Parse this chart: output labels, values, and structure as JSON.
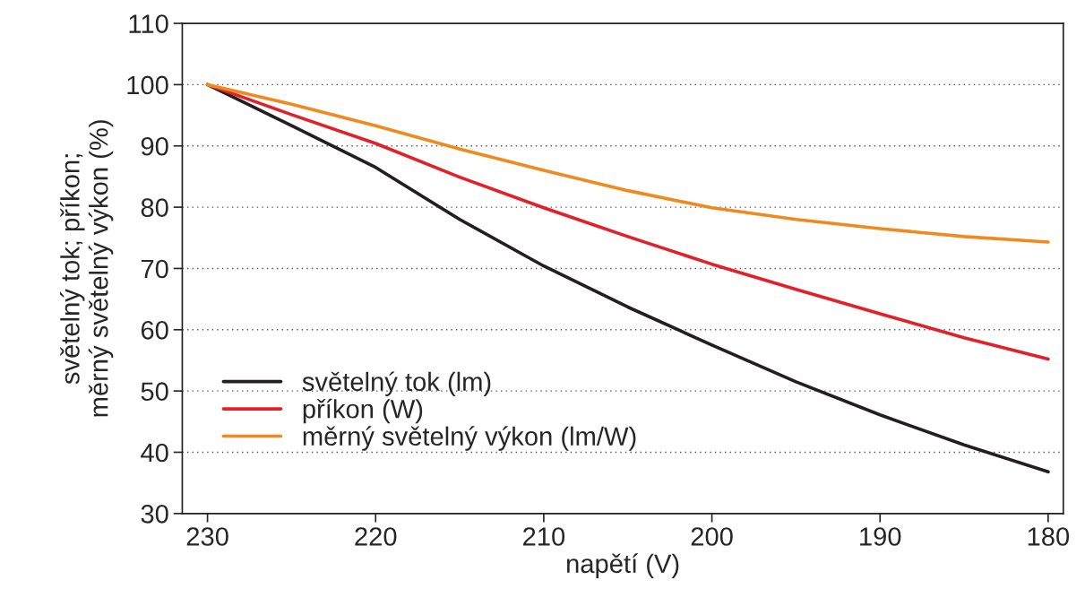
{
  "chart_data": {
    "type": "line",
    "xlabel": "napětí (V)",
    "ylabel": "světelný tok; příkon;\nměrný světelný výkon (%)",
    "x": [
      230,
      225,
      220,
      215,
      210,
      205,
      200,
      195,
      190,
      185,
      180
    ],
    "series": [
      {
        "name": "světelný tok (lm)",
        "color": "#231f20",
        "values": [
          100,
          93.3,
          86.5,
          78,
          70.4,
          63.7,
          57.5,
          51.5,
          46.1,
          41.2,
          36.8
        ]
      },
      {
        "name": "příkon (W)",
        "color": "#e3202a",
        "values": [
          100,
          95.1,
          90.4,
          84.9,
          79.9,
          75.2,
          70.7,
          66.6,
          62.6,
          58.7,
          55.2
        ]
      },
      {
        "name": "měrný světelný výkon (lm/W)",
        "color": "#f18a1c",
        "values": [
          100,
          96.8,
          93.3,
          89.5,
          86.0,
          82.7,
          79.9,
          78,
          76.5,
          75.2,
          74.3
        ]
      }
    ],
    "xlim": [
      231.5,
      179.1
    ],
    "xticks": [
      230,
      220,
      210,
      200,
      190,
      180
    ],
    "ylim": [
      30,
      110
    ],
    "yticks": [
      30,
      40,
      50,
      60,
      70,
      80,
      90,
      100,
      110
    ],
    "grid": "y",
    "legend": "bottom left",
    "marker": "none",
    "line_style": "solid"
  }
}
